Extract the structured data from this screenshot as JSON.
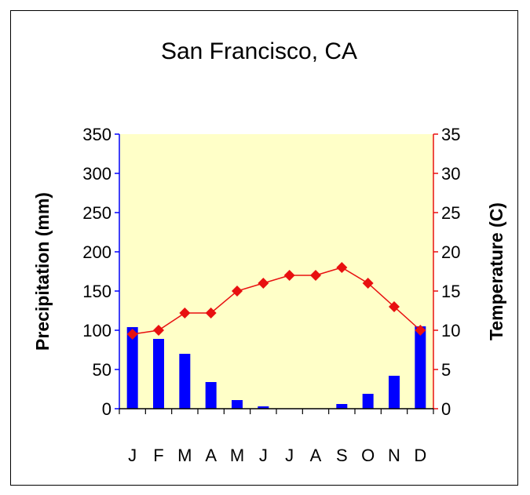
{
  "chart_data": {
    "type": "bar",
    "title": "San Francisco, CA",
    "categories": [
      "J",
      "F",
      "M",
      "A",
      "M",
      "J",
      "J",
      "A",
      "S",
      "O",
      "N",
      "D"
    ],
    "y_left": {
      "label": "Precipitation (mm)",
      "range": [
        0,
        350
      ],
      "ticks": [
        0,
        50,
        100,
        150,
        200,
        250,
        300,
        350
      ]
    },
    "y_right": {
      "label": "Temperature (C)",
      "range": [
        0,
        35
      ],
      "ticks": [
        0,
        5,
        10,
        15,
        20,
        25,
        30,
        35
      ]
    },
    "series": [
      {
        "type": "bar",
        "axis": "left",
        "color": "#0000ff",
        "values": [
          104,
          89,
          70,
          34,
          11,
          3,
          0,
          0,
          6,
          19,
          42,
          105
        ]
      },
      {
        "type": "line",
        "axis": "right",
        "color": "#e81010",
        "values": [
          9.5,
          10,
          12.2,
          12.2,
          15,
          16,
          17,
          17,
          18,
          16,
          13,
          10
        ]
      }
    ],
    "plot_background": "#ffffc8",
    "grid": false
  }
}
